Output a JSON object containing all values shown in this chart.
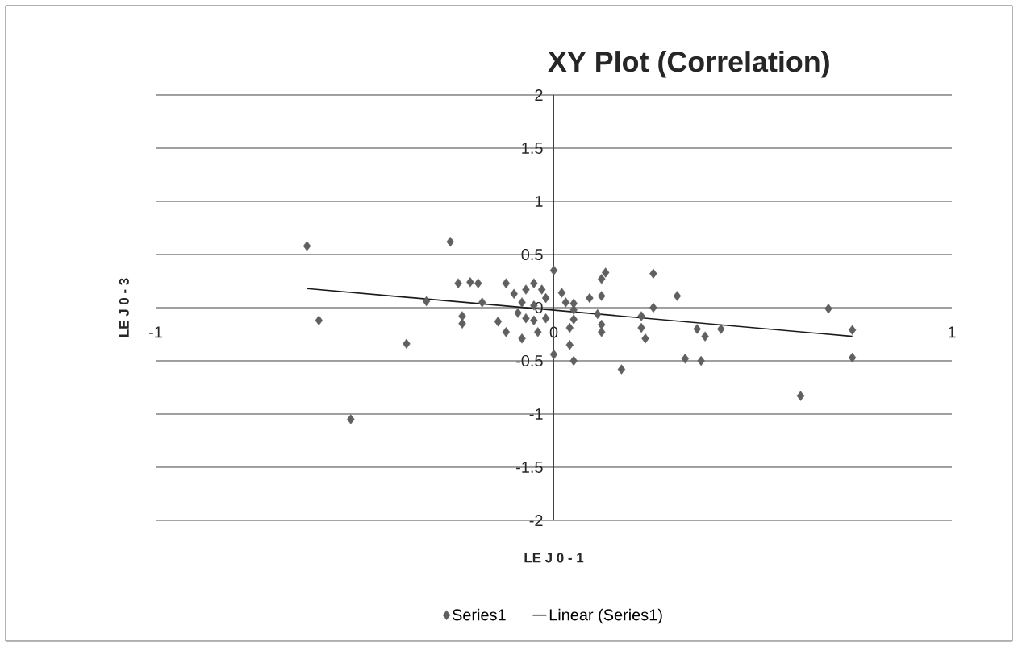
{
  "chart_data": {
    "type": "scatter",
    "title": "XY Plot (Correlation)",
    "xlabel": "LE J 0 - 1",
    "ylabel": "LE J 0 - 3",
    "xlim": [
      -1,
      1
    ],
    "xticks": [
      -1,
      0,
      1
    ],
    "ylim": [
      -2,
      2
    ],
    "yticks": [
      -2,
      -1.5,
      -1,
      -0.5,
      0,
      0.5,
      1,
      1.5,
      2
    ],
    "grid": "y",
    "legend": "bottom",
    "series": [
      {
        "name": "Series1",
        "marker": "diamond",
        "color": "#606060",
        "x": [
          -0.62,
          -0.59,
          -0.51,
          -0.37,
          -0.32,
          -0.26,
          -0.24,
          -0.21,
          -0.19,
          -0.23,
          -0.23,
          -0.18,
          -0.14,
          -0.12,
          -0.12,
          -0.1,
          -0.08,
          -0.07,
          -0.05,
          -0.03,
          -0.02,
          -0.09,
          -0.07,
          -0.04,
          -0.08,
          -0.05,
          -0.02,
          0.0,
          0.0,
          0.02,
          0.13,
          0.12,
          0.12,
          0.09,
          0.05,
          0.05,
          0.05,
          0.04,
          0.11,
          0.12,
          0.12,
          0.04,
          0.05,
          0.17,
          0.25,
          0.31,
          0.25,
          0.22,
          0.22,
          0.23,
          0.36,
          0.38,
          0.42,
          0.33,
          0.37,
          0.69,
          0.75,
          0.75,
          0.62,
          0.03,
          -0.05
        ],
        "values": [
          0.58,
          -0.12,
          -1.05,
          -0.34,
          0.06,
          0.62,
          0.23,
          0.24,
          0.23,
          -0.08,
          -0.15,
          0.05,
          -0.13,
          -0.23,
          0.23,
          0.13,
          0.05,
          0.17,
          0.23,
          0.17,
          0.09,
          -0.05,
          -0.1,
          -0.23,
          -0.29,
          -0.12,
          -0.1,
          0.35,
          -0.44,
          0.14,
          0.33,
          0.27,
          0.11,
          0.09,
          0.04,
          -0.02,
          -0.11,
          -0.19,
          -0.06,
          -0.16,
          -0.23,
          -0.35,
          -0.5,
          -0.58,
          0.32,
          0.11,
          0.0,
          -0.08,
          -0.19,
          -0.29,
          -0.2,
          -0.27,
          -0.2,
          -0.48,
          -0.5,
          -0.01,
          -0.21,
          -0.47,
          -0.83,
          0.05,
          0.02
        ]
      },
      {
        "name": "Linear (Series1)",
        "type": "line",
        "marker": "none",
        "color": "#1a1a1a",
        "x": [
          -0.62,
          0.75
        ],
        "values": [
          0.18,
          -0.27
        ]
      }
    ]
  }
}
